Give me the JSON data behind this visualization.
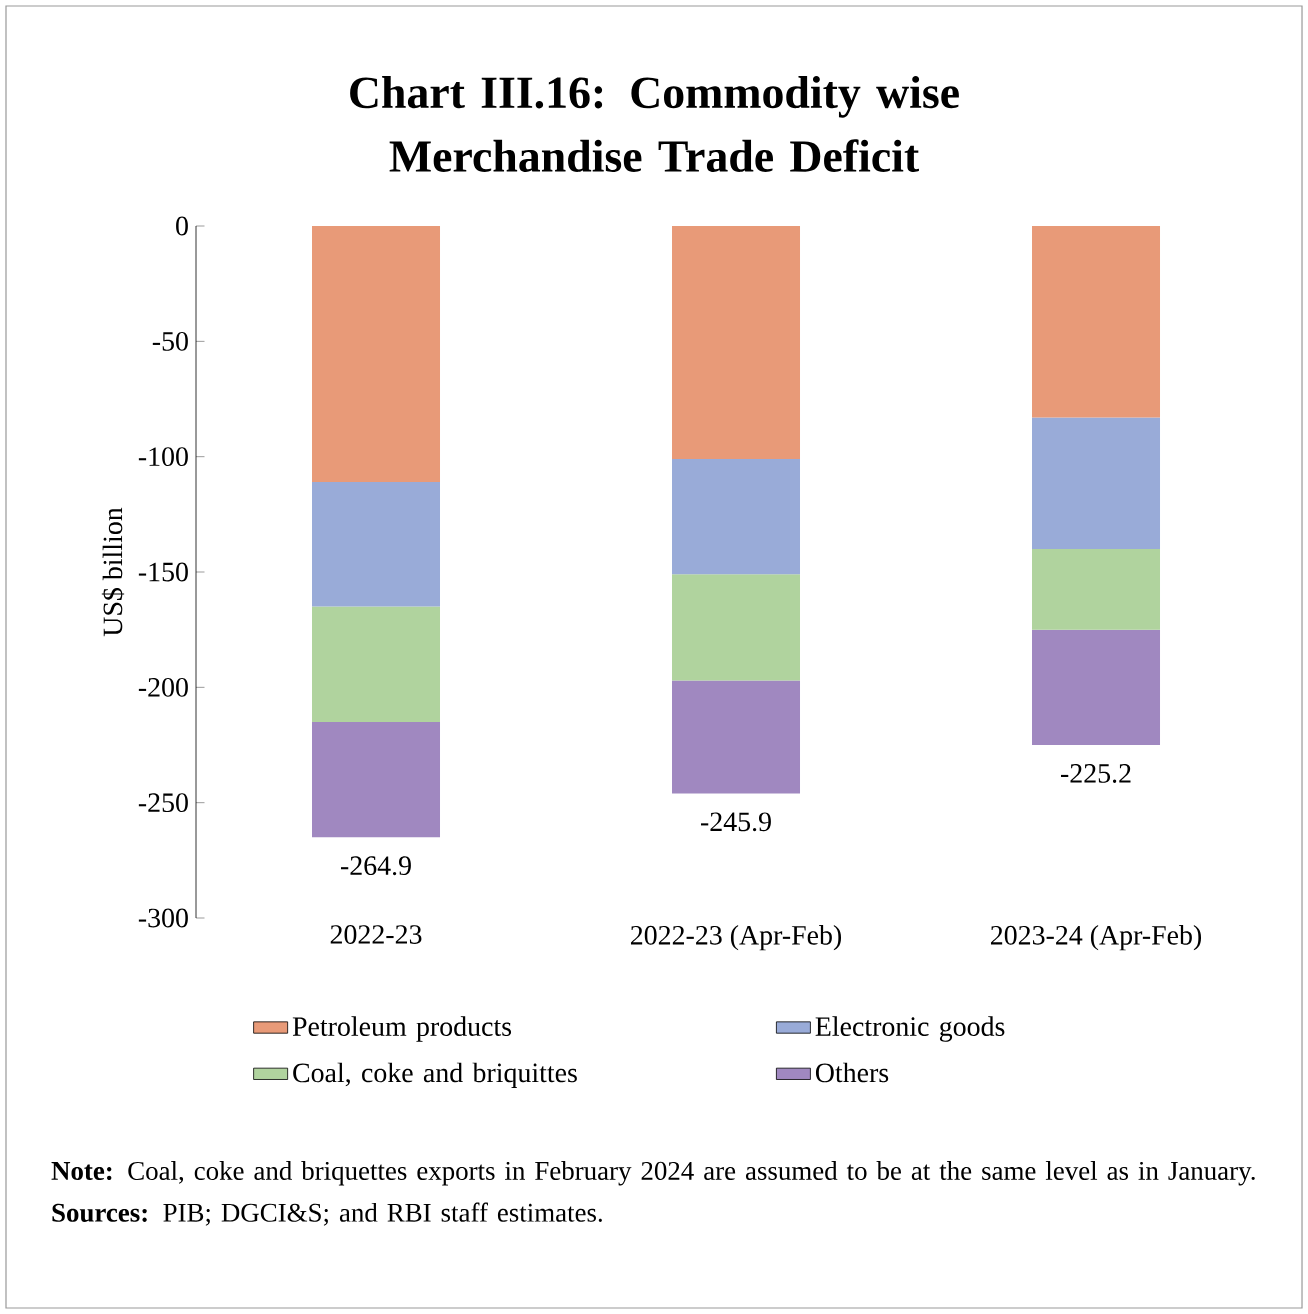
{
  "chart_data": {
    "type": "bar",
    "stacked": true,
    "title": "Chart III.16: Commodity wise Merchandise Trade Deficit",
    "ylabel": "US$ billion",
    "categories": [
      "2022-23",
      "2022-23 (Apr-Feb)",
      "2023-24 (Apr-Feb)"
    ],
    "series": [
      {
        "name": "Petroleum products",
        "color": "#e89a78",
        "values": [
          -111,
          -101,
          -83
        ]
      },
      {
        "name": "Electronic goods",
        "color": "#99abd8",
        "values": [
          -54,
          -50,
          -57
        ]
      },
      {
        "name": "Coal, coke and briquittes",
        "color": "#b0d39e",
        "values": [
          -50,
          -46,
          -35
        ]
      },
      {
        "name": "Others",
        "color": "#a088c0",
        "values": [
          -50,
          -49,
          -50
        ]
      }
    ],
    "totals": [
      "-264.9",
      "-245.9",
      "-225.2"
    ],
    "ylim": [
      -300,
      0
    ],
    "yticks": [
      -300,
      -250,
      -200,
      -150,
      -100,
      -50,
      0
    ],
    "grid": false,
    "legend": "bottom",
    "annotations": [
      "**Note:** Coal, coke and briquettes exports in February 2024 are assumed to be at the same level as in January.",
      "**Sources:** PIB; DGCI&S; and RBI staff estimates."
    ]
  }
}
